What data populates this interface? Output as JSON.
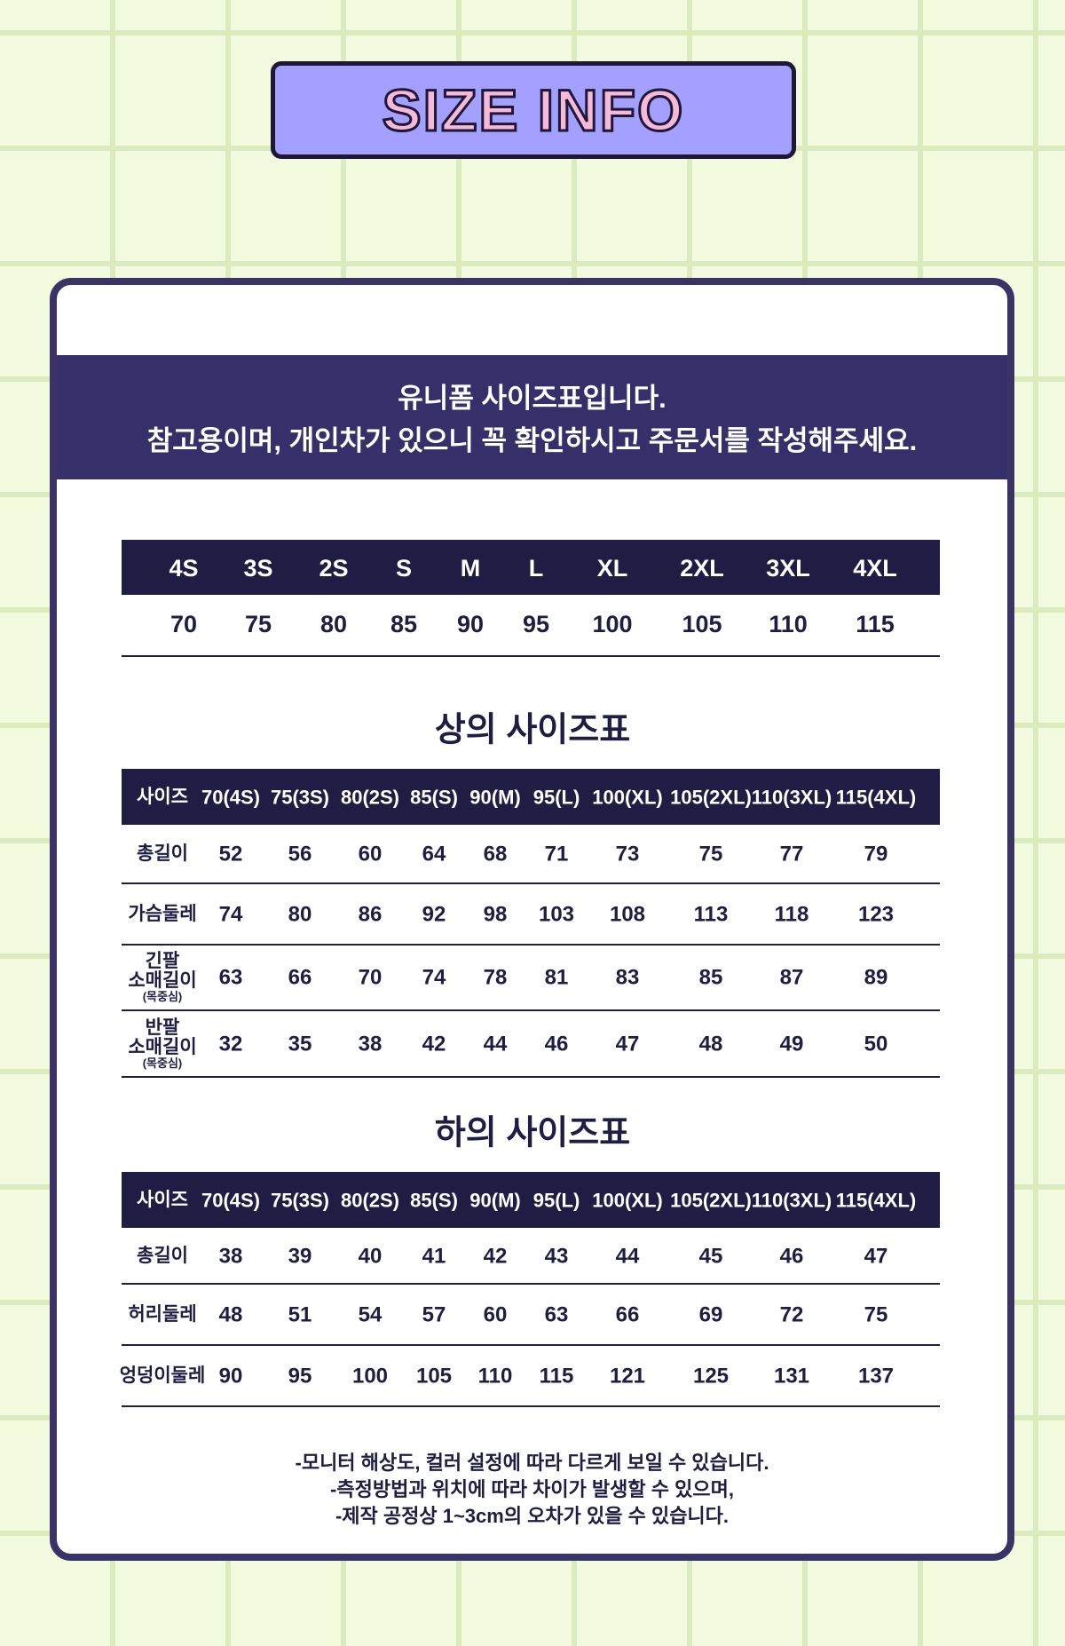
{
  "header": {
    "title": "SIZE INFO"
  },
  "intro": {
    "lines": [
      "유니폼 사이즈표입니다.",
      "참고용이며, 개인차가 있으니 꼭 확인하시고 주문서를 작성해주세요."
    ]
  },
  "size_table": {
    "headers": [
      "4S",
      "3S",
      "2S",
      "S",
      "M",
      "L",
      "XL",
      "2XL",
      "3XL",
      "4XL"
    ],
    "values": [
      70,
      75,
      80,
      85,
      90,
      95,
      100,
      105,
      110,
      115
    ]
  },
  "top_table": {
    "title": "상의 사이즈표",
    "headers": [
      "사이즈",
      "70(4S)",
      "75(3S)",
      "80(2S)",
      "85(S)",
      "90(M)",
      "95(L)",
      "100(XL)",
      "105(2XL)",
      "110(3XL)",
      "115(4XL)"
    ],
    "rows": [
      {
        "label": [
          "총길이"
        ],
        "values": [
          52,
          56,
          60,
          64,
          68,
          71,
          73,
          75,
          77,
          79
        ]
      },
      {
        "label": [
          "가슴둘레"
        ],
        "values": [
          74,
          80,
          86,
          92,
          98,
          103,
          108,
          113,
          118,
          123
        ]
      },
      {
        "label": [
          "긴팔",
          "소매길이",
          "(목중심)"
        ],
        "values": [
          63,
          66,
          70,
          74,
          78,
          81,
          83,
          85,
          87,
          89
        ]
      },
      {
        "label": [
          "반팔",
          "소매길이",
          "(목중심)"
        ],
        "values": [
          32,
          35,
          38,
          42,
          44,
          46,
          47,
          48,
          49,
          50
        ]
      }
    ]
  },
  "bottom_table": {
    "title": "하의 사이즈표",
    "headers": [
      "사이즈",
      "70(4S)",
      "75(3S)",
      "80(2S)",
      "85(S)",
      "90(M)",
      "95(L)",
      "100(XL)",
      "105(2XL)",
      "110(3XL)",
      "115(4XL)"
    ],
    "rows": [
      {
        "label": [
          "총길이"
        ],
        "values": [
          38,
          39,
          40,
          41,
          42,
          43,
          44,
          45,
          46,
          47
        ]
      },
      {
        "label": [
          "허리둘레"
        ],
        "values": [
          48,
          51,
          54,
          57,
          60,
          63,
          66,
          69,
          72,
          75
        ]
      },
      {
        "label": [
          "엉덩이둘레"
        ],
        "values": [
          90,
          95,
          100,
          105,
          110,
          115,
          121,
          125,
          131,
          137
        ]
      }
    ]
  },
  "notes": [
    "-모니터 해상도, 컬러 설정에 따라 다르게 보일 수 있습니다.",
    "-측정방법과 위치에 따라 차이가 발생할 수 있으며,",
    "-제작 공정상 1~3cm의 오차가 있을 수 있습니다."
  ]
}
